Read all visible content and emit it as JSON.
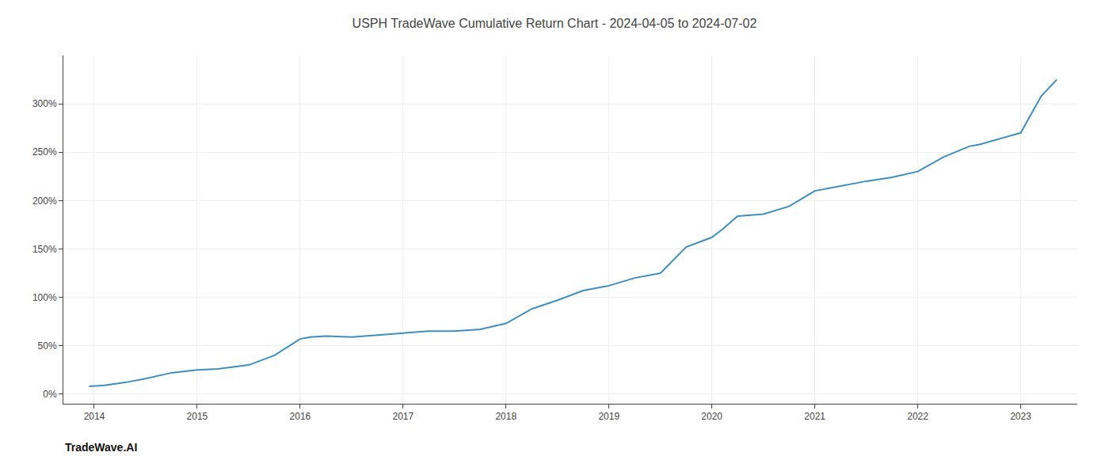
{
  "chart_data": {
    "type": "line",
    "title": "USPH TradeWave Cumulative Return Chart - 2024-04-05 to 2024-07-02",
    "annotations": [
      "TradeWave.AI"
    ],
    "x": [
      2013.95,
      2014.1,
      2014.3,
      2014.5,
      2014.75,
      2015.0,
      2015.2,
      2015.5,
      2015.75,
      2016.0,
      2016.1,
      2016.25,
      2016.5,
      2016.75,
      2017.0,
      2017.25,
      2017.5,
      2017.75,
      2018.0,
      2018.25,
      2018.5,
      2018.75,
      2019.0,
      2019.1,
      2019.25,
      2019.5,
      2019.75,
      2020.0,
      2020.1,
      2020.25,
      2020.5,
      2020.75,
      2021.0,
      2021.25,
      2021.5,
      2021.75,
      2022.0,
      2022.25,
      2022.5,
      2022.6,
      2023.0,
      2023.2,
      2023.35
    ],
    "values": [
      8,
      9,
      12,
      16,
      22,
      25,
      26,
      30,
      40,
      57,
      59,
      60,
      59,
      61,
      63,
      65,
      65,
      67,
      73,
      88,
      97,
      107,
      112,
      115,
      120,
      125,
      152,
      162,
      170,
      184,
      186,
      194,
      210,
      215,
      220,
      224,
      230,
      245,
      256,
      258,
      270,
      308,
      325
    ],
    "color": "#3d8fc0",
    "xlim": [
      2013.7,
      2023.55
    ],
    "ylim": [
      -10,
      350
    ],
    "xticks": [
      2014,
      2015,
      2016,
      2017,
      2018,
      2019,
      2020,
      2021,
      2022,
      2023
    ],
    "yticks": [
      {
        "value": 0,
        "label": "0%"
      },
      {
        "value": 50,
        "label": "50%"
      },
      {
        "value": 100,
        "label": "100%"
      },
      {
        "value": 150,
        "label": "150%"
      },
      {
        "value": 200,
        "label": "200%"
      },
      {
        "value": 250,
        "label": "250%"
      },
      {
        "value": 300,
        "label": "300%"
      }
    ],
    "grid": true
  }
}
